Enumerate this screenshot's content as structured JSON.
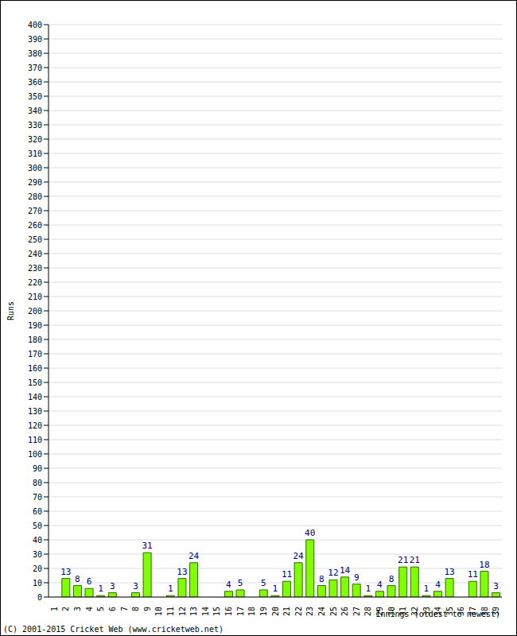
{
  "chart_data": {
    "type": "bar",
    "x_label": "Innings (oldest to newest)",
    "y_label": "Runs",
    "annotation": "(C) 2001-2015 Cricket Web (www.cricketweb.net)",
    "categories": [
      "1",
      "2",
      "3",
      "4",
      "5",
      "6",
      "7",
      "8",
      "9",
      "10",
      "11",
      "12",
      "13",
      "14",
      "15",
      "16",
      "17",
      "18",
      "19",
      "20",
      "21",
      "22",
      "23",
      "24",
      "25",
      "26",
      "27",
      "28",
      "29",
      "30",
      "31",
      "32",
      "33",
      "34",
      "35",
      "36",
      "37",
      "38",
      "39"
    ],
    "values": [
      0,
      13,
      8,
      6,
      1,
      3,
      0,
      3,
      31,
      0,
      1,
      13,
      24,
      0,
      0,
      4,
      5,
      0,
      5,
      1,
      11,
      24,
      40,
      8,
      12,
      14,
      9,
      1,
      4,
      8,
      21,
      21,
      1,
      4,
      13,
      0,
      11,
      18,
      3
    ],
    "color": "#80ff00",
    "ylim": [
      0,
      400
    ],
    "yticks": [
      0,
      10,
      20,
      30,
      40,
      50,
      60,
      70,
      80,
      90,
      100,
      110,
      120,
      130,
      140,
      150,
      160,
      170,
      180,
      190,
      200,
      210,
      220,
      230,
      240,
      250,
      260,
      270,
      280,
      290,
      300,
      310,
      320,
      330,
      340,
      350,
      360,
      370,
      380,
      390,
      400
    ],
    "grid": true,
    "data_labels": true
  }
}
